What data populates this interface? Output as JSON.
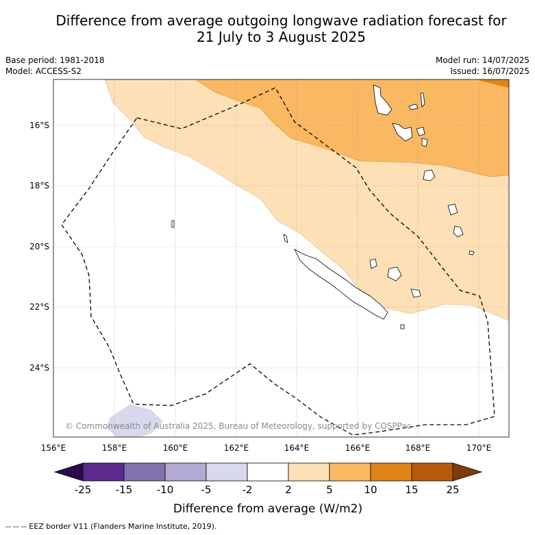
{
  "title_line1": "Difference from average outgoing longwave radiation forecast for",
  "title_line2": "21 July to 3 August 2025",
  "meta_left": [
    "Base period: 1981-2018",
    "Model: ACCESS-S2"
  ],
  "meta_right": [
    "Model run: 14/07/2025",
    "Issued: 16/07/2025"
  ],
  "lat_labels": [
    "16°S",
    "18°S",
    "20°S",
    "22°S",
    "24°S"
  ],
  "lon_labels": [
    "156°E",
    "158°E",
    "160°E",
    "162°E",
    "164°E",
    "166°E",
    "168°E",
    "170°E"
  ],
  "copyright": "© Commonwealth of Australia 2025, Bureau of Meteorology, supported by COSPPac",
  "colorbar": {
    "ticks": [
      "-25",
      "-15",
      "-10",
      "-5",
      "-2",
      "2",
      "5",
      "10",
      "15",
      "25"
    ],
    "colors": [
      "#5b2a8c",
      "#8072ae",
      "#b2aad2",
      "#d8d9ec",
      "#ffffff",
      "#fde0b5",
      "#fbb862",
      "#e08417",
      "#b45a0b"
    ],
    "low_extend_color": "#2d0a4f",
    "high_extend_color": "#7e3b07",
    "label": "Difference from average (W/m2)"
  },
  "footer": "--  --  -- EEZ border V11 (Flanders Marine Institute, 2019)."
}
